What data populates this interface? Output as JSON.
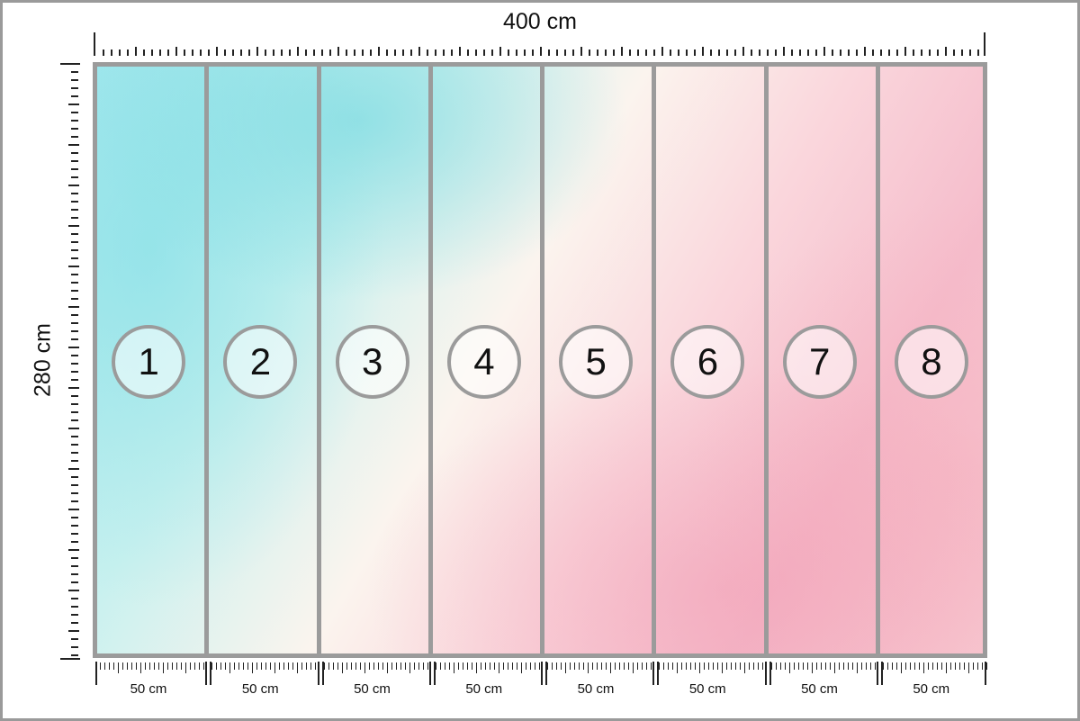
{
  "dimensions": {
    "width_label": "400 cm",
    "height_label": "280 cm"
  },
  "panels": [
    {
      "number": "1",
      "width_label": "50 cm"
    },
    {
      "number": "2",
      "width_label": "50 cm"
    },
    {
      "number": "3",
      "width_label": "50 cm"
    },
    {
      "number": "4",
      "width_label": "50 cm"
    },
    {
      "number": "5",
      "width_label": "50 cm"
    },
    {
      "number": "6",
      "width_label": "50 cm"
    },
    {
      "number": "7",
      "width_label": "50 cm"
    },
    {
      "number": "8",
      "width_label": "50 cm"
    }
  ],
  "colors": {
    "frame": "#9b9b9b",
    "teal": "#a9e9ee",
    "pink": "#f5bccb"
  }
}
